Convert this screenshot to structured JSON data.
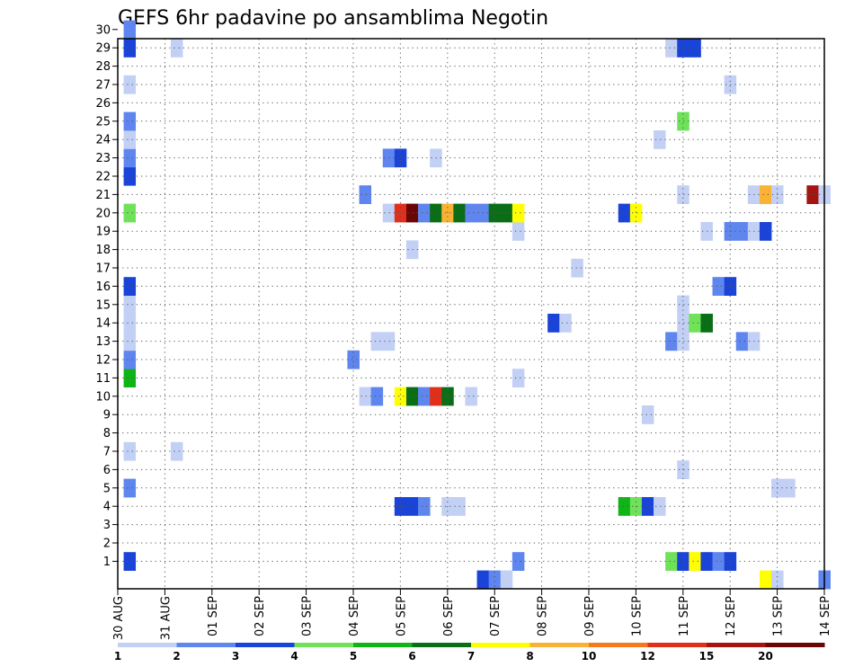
{
  "chart_data": {
    "type": "heatmap",
    "title": "GEFS 6hr padavine po ansamblima Negotin",
    "y_ticks": [
      "30",
      "29",
      "28",
      "27",
      "26",
      "25",
      "24",
      "23",
      "22",
      "21",
      "20",
      "19",
      "18",
      "17",
      "16",
      "15",
      "14",
      "13",
      "12",
      "11",
      "10",
      "9",
      "8",
      "7",
      "6",
      "5",
      "4",
      "3",
      "2",
      "1"
    ],
    "x_ticks": [
      "30 AUG",
      "31 AUG",
      "01 SEP",
      "02 SEP",
      "03 SEP",
      "04 SEP",
      "05 SEP",
      "06 SEP",
      "07 SEP",
      "08 SEP",
      "09 SEP",
      "10 SEP",
      "11 SEP",
      "12 SEP",
      "13 SEP",
      "14 SEP"
    ],
    "x_range": [
      "30 AUG",
      "14 SEP"
    ],
    "time_step_hours": 6,
    "grid": "dotted",
    "legend_position": "bottom",
    "legend": {
      "colors": [
        "#c3d0f5",
        "#5f85ee",
        "#1a43d8",
        "#6fe25a",
        "#0fb417",
        "#0a6e17",
        "#ffff00",
        "#f9b233",
        "#f57a1e",
        "#e1301a",
        "#a5150f",
        "#6b0606"
      ],
      "labels": [
        "1",
        "2",
        "3",
        "4",
        "5",
        "6",
        "7",
        "8",
        "10",
        "12",
        "15",
        "20"
      ]
    },
    "cells": [
      {
        "m": 1,
        "x": 0.25,
        "v": 3
      },
      {
        "m": 1,
        "x": 8.5,
        "v": 2
      },
      {
        "m": 1,
        "x": 11.75,
        "v": 4
      },
      {
        "m": 1,
        "x": 12.0,
        "v": 3
      },
      {
        "m": 1,
        "x": 12.25,
        "v": 7
      },
      {
        "m": 1,
        "x": 12.5,
        "v": 3
      },
      {
        "m": 1,
        "x": 12.75,
        "v": 2
      },
      {
        "m": 1,
        "x": 13.0,
        "v": 3
      },
      {
        "m": 4,
        "x": 6.0,
        "v": 3
      },
      {
        "m": 4,
        "x": 6.25,
        "v": 3
      },
      {
        "m": 4,
        "x": 6.5,
        "v": 2
      },
      {
        "m": 4,
        "x": 7.0,
        "v": 1
      },
      {
        "m": 4,
        "x": 7.25,
        "v": 1
      },
      {
        "m": 4,
        "x": 10.75,
        "v": 5
      },
      {
        "m": 4,
        "x": 11.0,
        "v": 4
      },
      {
        "m": 4,
        "x": 11.25,
        "v": 3
      },
      {
        "m": 4,
        "x": 11.5,
        "v": 1
      },
      {
        "m": 5,
        "x": 0.25,
        "v": 2
      },
      {
        "m": 5,
        "x": 14.0,
        "v": 1
      },
      {
        "m": 5,
        "x": 14.25,
        "v": 1
      },
      {
        "m": 6,
        "x": 12.0,
        "v": 1
      },
      {
        "m": 7,
        "x": 0.25,
        "v": 1
      },
      {
        "m": 7,
        "x": 1.25,
        "v": 1
      },
      {
        "m": 9,
        "x": 11.25,
        "v": 1
      },
      {
        "m": 10,
        "x": 5.25,
        "v": 1
      },
      {
        "m": 10,
        "x": 5.5,
        "v": 2
      },
      {
        "m": 10,
        "x": 6.0,
        "v": 7
      },
      {
        "m": 10,
        "x": 6.25,
        "v": 6
      },
      {
        "m": 10,
        "x": 6.5,
        "v": 2
      },
      {
        "m": 10,
        "x": 6.75,
        "v": 12
      },
      {
        "m": 10,
        "x": 7.0,
        "v": 6
      },
      {
        "m": 10,
        "x": 7.5,
        "v": 1
      },
      {
        "m": 11,
        "x": 0.25,
        "v": 5
      },
      {
        "m": 11,
        "x": 8.5,
        "v": 1
      },
      {
        "m": 12,
        "x": 0.25,
        "v": 2
      },
      {
        "m": 12,
        "x": 5.0,
        "v": 2
      },
      {
        "m": 13,
        "x": 0.25,
        "v": 1
      },
      {
        "m": 13,
        "x": 5.5,
        "v": 1
      },
      {
        "m": 13,
        "x": 5.75,
        "v": 1
      },
      {
        "m": 13,
        "x": 11.75,
        "v": 2
      },
      {
        "m": 13,
        "x": 12.0,
        "v": 1
      },
      {
        "m": 13,
        "x": 13.25,
        "v": 2
      },
      {
        "m": 13,
        "x": 13.5,
        "v": 1
      },
      {
        "m": 14,
        "x": 0.25,
        "v": 1
      },
      {
        "m": 14,
        "x": 9.25,
        "v": 3
      },
      {
        "m": 14,
        "x": 9.5,
        "v": 1
      },
      {
        "m": 14,
        "x": 12.0,
        "v": 1
      },
      {
        "m": 14,
        "x": 12.25,
        "v": 4
      },
      {
        "m": 14,
        "x": 12.5,
        "v": 6
      },
      {
        "m": 15,
        "x": 0.25,
        "v": 1
      },
      {
        "m": 15,
        "x": 12.0,
        "v": 1
      },
      {
        "m": 16,
        "x": 0.25,
        "v": 3
      },
      {
        "m": 16,
        "x": 12.75,
        "v": 2
      },
      {
        "m": 16,
        "x": 13.0,
        "v": 3
      },
      {
        "m": 17,
        "x": 9.75,
        "v": 1
      },
      {
        "m": 18,
        "x": 6.25,
        "v": 1
      },
      {
        "m": 19,
        "x": 8.5,
        "v": 1
      },
      {
        "m": 19,
        "x": 12.5,
        "v": 1
      },
      {
        "m": 19,
        "x": 13.0,
        "v": 2
      },
      {
        "m": 19,
        "x": 13.25,
        "v": 2
      },
      {
        "m": 19,
        "x": 13.5,
        "v": 1
      },
      {
        "m": 19,
        "x": 13.75,
        "v": 3
      },
      {
        "m": 20,
        "x": 0.25,
        "v": 4
      },
      {
        "m": 20,
        "x": 5.75,
        "v": 1
      },
      {
        "m": 20,
        "x": 6.0,
        "v": 12
      },
      {
        "m": 20,
        "x": 6.25,
        "v": 20
      },
      {
        "m": 20,
        "x": 6.5,
        "v": 2
      },
      {
        "m": 20,
        "x": 6.75,
        "v": 6
      },
      {
        "m": 20,
        "x": 7.0,
        "v": 8
      },
      {
        "m": 20,
        "x": 7.25,
        "v": 6
      },
      {
        "m": 20,
        "x": 7.5,
        "v": 2
      },
      {
        "m": 20,
        "x": 7.75,
        "v": 2
      },
      {
        "m": 20,
        "x": 8.0,
        "v": 6
      },
      {
        "m": 20,
        "x": 8.25,
        "v": 6
      },
      {
        "m": 20,
        "x": 8.5,
        "v": 7
      },
      {
        "m": 20,
        "x": 10.75,
        "v": 3
      },
      {
        "m": 20,
        "x": 11.0,
        "v": 7
      },
      {
        "m": 21,
        "x": 5.25,
        "v": 2
      },
      {
        "m": 21,
        "x": 12.0,
        "v": 1
      },
      {
        "m": 21,
        "x": 13.5,
        "v": 1
      },
      {
        "m": 21,
        "x": 13.75,
        "v": 8
      },
      {
        "m": 21,
        "x": 14.0,
        "v": 1
      },
      {
        "m": 21,
        "x": 14.75,
        "v": 15
      },
      {
        "m": 21,
        "x": 15.0,
        "v": 1
      },
      {
        "m": 22,
        "x": 0.25,
        "v": 3
      },
      {
        "m": 23,
        "x": 0.25,
        "v": 2
      },
      {
        "m": 23,
        "x": 5.75,
        "v": 2
      },
      {
        "m": 23,
        "x": 6.0,
        "v": 3
      },
      {
        "m": 23,
        "x": 6.75,
        "v": 1
      },
      {
        "m": 24,
        "x": 0.25,
        "v": 1
      },
      {
        "m": 24,
        "x": 11.5,
        "v": 1
      },
      {
        "m": 25,
        "x": 0.25,
        "v": 2
      },
      {
        "m": 25,
        "x": 12.0,
        "v": 4
      },
      {
        "m": 27,
        "x": 0.25,
        "v": 1
      },
      {
        "m": 27,
        "x": 13.0,
        "v": 1
      },
      {
        "m": 29,
        "x": 0.25,
        "v": 3
      },
      {
        "m": 29,
        "x": 1.25,
        "v": 1
      },
      {
        "m": 29,
        "x": 11.75,
        "v": 1
      },
      {
        "m": 29,
        "x": 12.0,
        "v": 3
      },
      {
        "m": 29,
        "x": 12.25,
        "v": 3
      },
      {
        "m": 30,
        "x": 0.25,
        "v": 2
      },
      {
        "m": 0,
        "x": 7.75,
        "v": 3
      },
      {
        "m": 0,
        "x": 8.0,
        "v": 2
      },
      {
        "m": 0,
        "x": 8.25,
        "v": 1
      },
      {
        "m": 0,
        "x": 13.75,
        "v": 7
      },
      {
        "m": 0,
        "x": 14.0,
        "v": 1
      },
      {
        "m": 0,
        "x": 15.0,
        "v": 2
      }
    ]
  }
}
